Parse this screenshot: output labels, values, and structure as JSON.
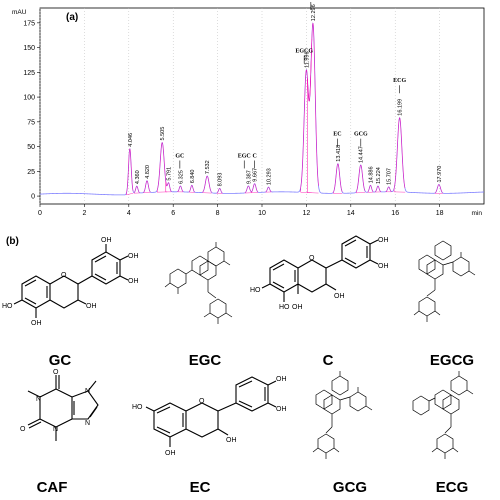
{
  "panel_a_label": "(a)",
  "panel_b_label": "(b)",
  "chart_data": {
    "type": "line",
    "ylabel": "mAU",
    "xlabel": "min",
    "xlim": [
      0,
      20
    ],
    "ylim": [
      -8,
      190
    ],
    "x_ticks": [
      0,
      2,
      4,
      6,
      8,
      10,
      12,
      14,
      16,
      18
    ],
    "y_ticks": [
      0,
      25,
      50,
      75,
      100,
      125,
      150,
      175
    ],
    "grid": "vertical dotted",
    "series": [
      {
        "color_trace": "#8080ff",
        "color_peaks": "#ff00aa",
        "peaks": [
          {
            "rt": 4.046,
            "height": 45,
            "width": 0.06
          },
          {
            "rt": 4.36,
            "height": 7,
            "width": 0.05
          },
          {
            "rt": 4.82,
            "height": 12,
            "width": 0.06
          },
          {
            "rt": 5.505,
            "height": 50,
            "width": 0.09
          },
          {
            "rt": 5.791,
            "height": 9,
            "width": 0.05
          },
          {
            "rt": 6.325,
            "height": 6,
            "width": 0.05
          },
          {
            "rt": 6.84,
            "height": 7,
            "width": 0.05
          },
          {
            "rt": 7.532,
            "height": 17,
            "width": 0.08
          },
          {
            "rt": 8.093,
            "height": 5,
            "width": 0.05
          },
          {
            "rt": 9.387,
            "height": 7,
            "width": 0.06
          },
          {
            "rt": 9.667,
            "height": 9,
            "width": 0.06
          },
          {
            "rt": 10.293,
            "height": 5,
            "width": 0.05
          },
          {
            "rt": 11.996,
            "height": 122,
            "width": 0.1
          },
          {
            "rt": 12.296,
            "height": 170,
            "width": 0.1
          },
          {
            "rt": 13.418,
            "height": 30,
            "width": 0.08
          },
          {
            "rt": 14.447,
            "height": 28,
            "width": 0.08
          },
          {
            "rt": 14.886,
            "height": 7,
            "width": 0.05
          },
          {
            "rt": 15.224,
            "height": 6,
            "width": 0.05
          },
          {
            "rt": 15.707,
            "height": 5,
            "width": 0.05
          },
          {
            "rt": 16.199,
            "height": 75,
            "width": 0.1
          },
          {
            "rt": 17.97,
            "height": 9,
            "width": 0.07
          }
        ]
      }
    ],
    "peak_labels": [
      "4.046",
      "4.360",
      "4.820",
      "5.505",
      "5.791",
      "6.325",
      "6.840",
      "7.532",
      "8.093",
      "9.387",
      "9.667",
      "10.293",
      "11.996",
      "12.296",
      "13.418",
      "14.447",
      "14.886",
      "15.224",
      "15.707",
      "16.199",
      "17.970"
    ],
    "annotations": [
      {
        "text": "GC",
        "rt": 6.3,
        "level": 36
      },
      {
        "text": "EGC",
        "rt": 9.2,
        "level": 36
      },
      {
        "text": "C",
        "rt": 9.67,
        "level": 36
      },
      {
        "text": "EGCG",
        "rt": 11.9,
        "level": 142
      },
      {
        "text": "CAF",
        "rt": 12.2,
        "level": 196
      },
      {
        "text": "EC",
        "rt": 13.4,
        "level": 58
      },
      {
        "text": "GCG",
        "rt": 14.45,
        "level": 58
      },
      {
        "text": "ECG",
        "rt": 16.2,
        "level": 112
      }
    ]
  },
  "molecules": {
    "GC": "GC",
    "EGC": "EGC",
    "C": "C",
    "EGCG": "EGCG",
    "CAF": "CAF",
    "EC": "EC",
    "GCG": "GCG",
    "ECG": "ECG"
  },
  "atoms": {
    "OH": "OH",
    "HO": "HO",
    "O": "O",
    "N": "N"
  }
}
